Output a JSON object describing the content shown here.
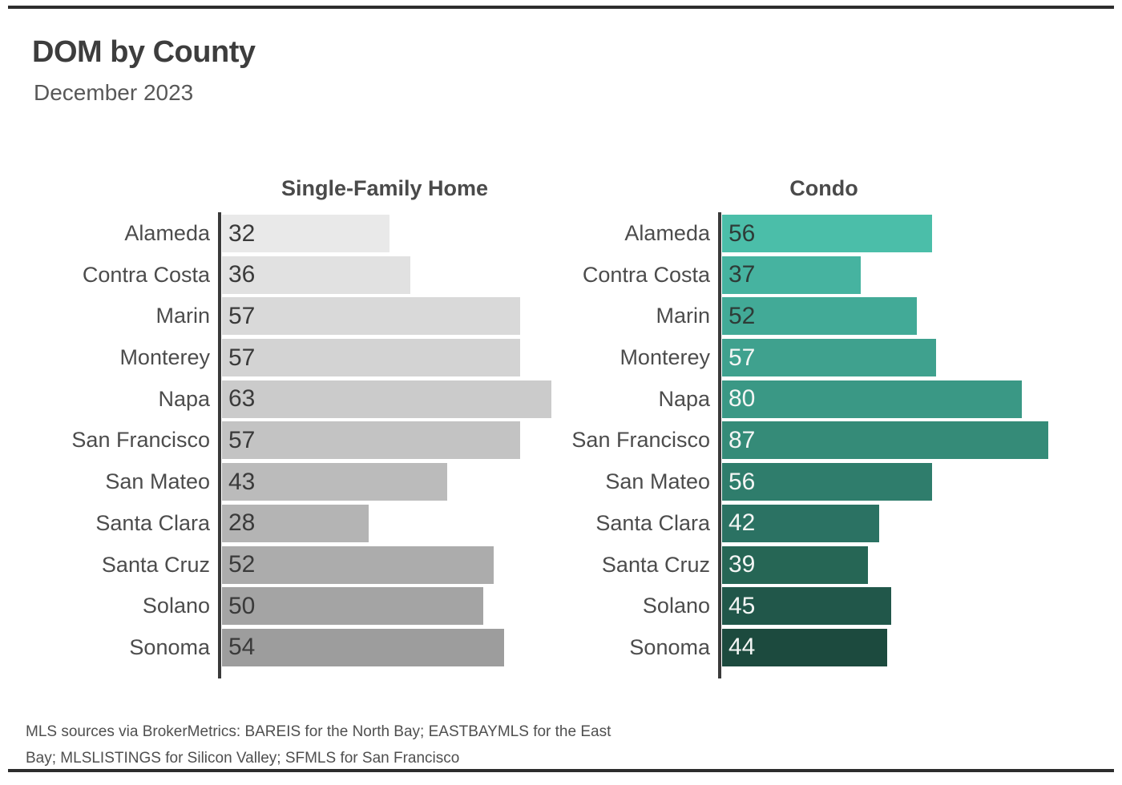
{
  "page": {
    "title": "DOM by County",
    "subtitle": "December 2023",
    "footnote_lines": [
      "MLS sources via BrokerMetrics: BAREIS for the North Bay; EASTBAYMLS for the East",
      "Bay; MLSLISTINGS for Silicon Valley; SFMLS for San Francisco"
    ]
  },
  "colors": {
    "axis_line": "#3a3a3a",
    "rule": "#2d2d2d",
    "title_text": "#3d3d3d",
    "label_text": "#4c4c4c"
  },
  "chart_data": [
    {
      "type": "bar",
      "orientation": "horizontal",
      "title": "Single-Family Home",
      "categories": [
        "Alameda",
        "Contra Costa",
        "Marin",
        "Monterey",
        "Napa",
        "San Francisco",
        "San Mateo",
        "Santa Clara",
        "Santa Cruz",
        "Solano",
        "Sonoma"
      ],
      "values": [
        32,
        36,
        57,
        57,
        63,
        57,
        43,
        28,
        52,
        50,
        54
      ],
      "xlim": [
        0,
        63
      ],
      "grid": false,
      "legend": "none",
      "value_labels": "inside-left",
      "bar_colors": [
        "#E9E9E9",
        "#E1E1E1",
        "#D9D9D9",
        "#D3D3D3",
        "#CBCBCB",
        "#C3C3C3",
        "#BBBBBB",
        "#B4B4B4",
        "#ACACAC",
        "#A4A4A4",
        "#9D9D9D"
      ],
      "value_label_colors": [
        "#3a3a3a",
        "#3a3a3a",
        "#3a3a3a",
        "#3a3a3a",
        "#3a3a3a",
        "#3a3a3a",
        "#3a3a3a",
        "#3a3a3a",
        "#3a3a3a",
        "#3a3a3a",
        "#3a3a3a"
      ]
    },
    {
      "type": "bar",
      "orientation": "horizontal",
      "title": "Condo",
      "categories": [
        "Alameda",
        "Contra Costa",
        "Marin",
        "Monterey",
        "Napa",
        "San Francisco",
        "San Mateo",
        "Santa Clara",
        "Santa Cruz",
        "Solano",
        "Sonoma"
      ],
      "values": [
        56,
        37,
        52,
        57,
        80,
        87,
        56,
        42,
        39,
        45,
        44
      ],
      "xlim": [
        0,
        87
      ],
      "grid": false,
      "legend": "none",
      "value_labels": "inside-left",
      "bar_colors": [
        "#4BBEA9",
        "#46B3A0",
        "#42AA97",
        "#3FA18E",
        "#3A9885",
        "#358B78",
        "#2F7D6C",
        "#2B7263",
        "#266655",
        "#21574A",
        "#1C4A3E"
      ],
      "value_label_colors": [
        "#2e3b37",
        "#2e3b37",
        "#2e3b37",
        "#f4f6f5",
        "#f4f6f5",
        "#f4f6f5",
        "#f4f6f5",
        "#f4f6f5",
        "#f4f6f5",
        "#f4f6f5",
        "#f4f6f5"
      ]
    }
  ]
}
